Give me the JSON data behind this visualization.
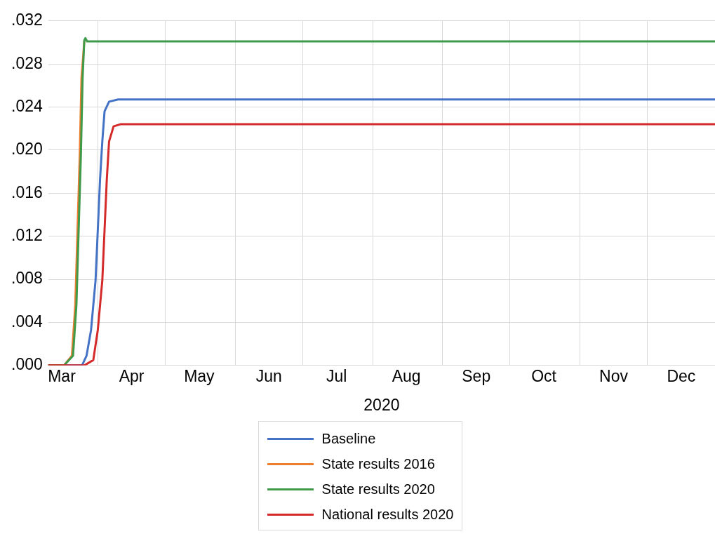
{
  "chart_data": {
    "type": "line",
    "xlabel": "2020",
    "legend": "bottom",
    "grid": true,
    "marker": "none",
    "line_style": "solid",
    "xlim": [
      "2020-03-10",
      "2020-12-31"
    ],
    "xticks": [
      {
        "value": "2020-03-16",
        "label": "Mar"
      },
      {
        "value": "2020-04-01",
        "label": null
      },
      {
        "value": "2020-04-16",
        "label": "Apr"
      },
      {
        "value": "2020-05-01",
        "label": null
      },
      {
        "value": "2020-05-16",
        "label": "May"
      },
      {
        "value": "2020-06-01",
        "label": null
      },
      {
        "value": "2020-06-16",
        "label": "Jun"
      },
      {
        "value": "2020-07-01",
        "label": null
      },
      {
        "value": "2020-07-16",
        "label": "Jul"
      },
      {
        "value": "2020-08-01",
        "label": null
      },
      {
        "value": "2020-08-16",
        "label": "Aug"
      },
      {
        "value": "2020-09-01",
        "label": null
      },
      {
        "value": "2020-09-16",
        "label": "Sep"
      },
      {
        "value": "2020-10-01",
        "label": null
      },
      {
        "value": "2020-10-16",
        "label": "Oct"
      },
      {
        "value": "2020-11-01",
        "label": null
      },
      {
        "value": "2020-11-16",
        "label": "Nov"
      },
      {
        "value": "2020-12-01",
        "label": null
      },
      {
        "value": "2020-12-16",
        "label": "Dec"
      }
    ],
    "ylim": [
      0,
      0.032
    ],
    "yticks": [
      {
        "value": 0,
        "label": ".000"
      },
      {
        "value": 0.004,
        "label": ".004"
      },
      {
        "value": 0.008,
        "label": ".008"
      },
      {
        "value": 0.012,
        "label": ".012"
      },
      {
        "value": 0.016,
        "label": ".016"
      },
      {
        "value": 0.02,
        "label": ".020"
      },
      {
        "value": 0.024,
        "label": ".024"
      },
      {
        "value": 0.028,
        "label": ".028"
      },
      {
        "value": 0.032,
        "label": ".032"
      }
    ],
    "series": [
      {
        "name": "Baseline",
        "color": "#4472c4",
        "x": [
          "2020-03-10",
          "2020-03-25",
          "2020-03-27",
          "2020-03-29",
          "2020-03-31",
          "2020-04-01",
          "2020-04-02",
          "2020-04-03",
          "2020-04-04",
          "2020-04-06",
          "2020-04-10",
          "2020-12-31"
        ],
        "values": [
          0,
          0,
          0.0009,
          0.0033,
          0.0079,
          0.0126,
          0.0173,
          0.0208,
          0.0236,
          0.0245,
          0.0247,
          0.0247
        ]
      },
      {
        "name": "State results 2016",
        "color": "#ed7d31",
        "x": [
          "2020-03-10",
          "2020-03-17",
          "2020-03-20T12:00",
          "2020-03-22",
          "2020-03-23",
          "2020-03-24",
          "2020-03-24T18:00",
          "2020-03-25T12:00",
          "2020-03-26"
        ],
        "values": [
          0,
          0,
          0.0009,
          0.0056,
          0.0126,
          0.0196,
          0.0267,
          0.0287,
          0.0301
        ]
      },
      {
        "name": "State results 2020",
        "color": "#3f9a4a",
        "x": [
          "2020-03-10",
          "2020-03-17",
          "2020-03-21",
          "2020-03-22T12:00",
          "2020-03-23T12:00",
          "2020-03-24T12:00",
          "2020-03-25T06:00",
          "2020-03-26",
          "2020-03-26T12:00",
          "2020-03-27T06:00",
          "2020-12-31"
        ],
        "values": [
          0,
          0,
          0.0009,
          0.0056,
          0.0126,
          0.0196,
          0.0267,
          0.0302,
          0.0304,
          0.0301,
          0.0301
        ]
      },
      {
        "name": "National results 2020",
        "color": "#d42a2a",
        "x": [
          "2020-03-10",
          "2020-03-26",
          "2020-03-30",
          "2020-04-01",
          "2020-04-03",
          "2020-04-04",
          "2020-04-05",
          "2020-04-06",
          "2020-04-08",
          "2020-04-11",
          "2020-12-31"
        ],
        "values": [
          0,
          0,
          0.0005,
          0.0033,
          0.0079,
          0.0126,
          0.0173,
          0.0208,
          0.0222,
          0.0224,
          0.0224
        ]
      }
    ]
  }
}
